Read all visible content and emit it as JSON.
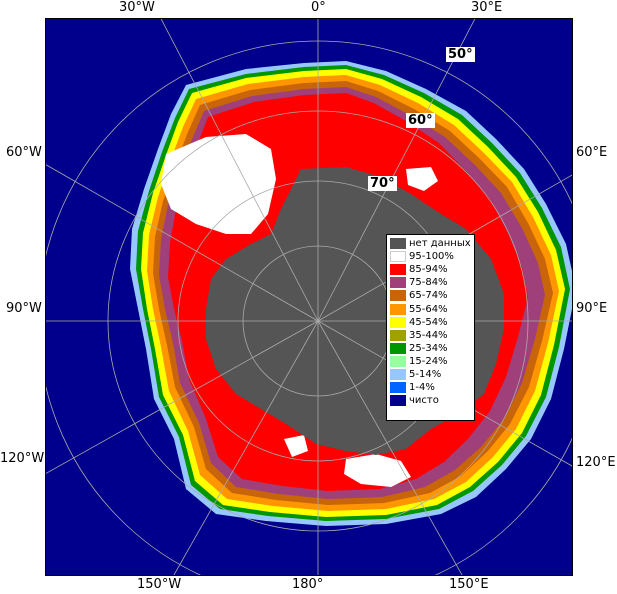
{
  "map": {
    "longitude_labels": {
      "top_30w": "30°W",
      "top_0": "0°",
      "top_30e": "30°E",
      "left_60w": "60°W",
      "left_90w": "90°W",
      "left_120w": "120°W",
      "right_60e": "60°E",
      "right_90e": "90°E",
      "right_120e": "120°E",
      "bottom_150w": "150°W",
      "bottom_180": "180°",
      "bottom_150e": "150°E"
    },
    "latitude_labels": {
      "lat_50": "50°",
      "lat_60": "60°",
      "lat_70": "70°"
    },
    "colors": {
      "open_water": "#00008c",
      "no_data": "#555555",
      "c95_100": "#ffffff",
      "c85_94": "#ff0000",
      "c75_84": "#a0407a",
      "c65_74": "#c8640a",
      "c55_64": "#ff9600",
      "c45_54": "#ffff00",
      "c35_44": "#a0a000",
      "c25_34": "#009600",
      "c15_24": "#96ffa0",
      "c5_14": "#96c8ff",
      "c1_4": "#0064ff",
      "clear": "#00008c"
    }
  },
  "legend": {
    "items": [
      {
        "label": "нет данных",
        "color": "#555555"
      },
      {
        "label": "95-100%",
        "color": "#ffffff"
      },
      {
        "label": "85-94%",
        "color": "#ff0000"
      },
      {
        "label": "75-84%",
        "color": "#a0407a"
      },
      {
        "label": "65-74%",
        "color": "#c8640a"
      },
      {
        "label": "55-64%",
        "color": "#ff9600"
      },
      {
        "label": "45-54%",
        "color": "#ffff00"
      },
      {
        "label": "35-44%",
        "color": "#a0a000"
      },
      {
        "label": "25-34%",
        "color": "#009600"
      },
      {
        "label": "15-24%",
        "color": "#96ffa0"
      },
      {
        "label": "5-14%",
        "color": "#96c8ff"
      },
      {
        "label": "1-4%",
        "color": "#0064ff"
      },
      {
        "label": "чисто",
        "color": "#00008c"
      }
    ]
  }
}
